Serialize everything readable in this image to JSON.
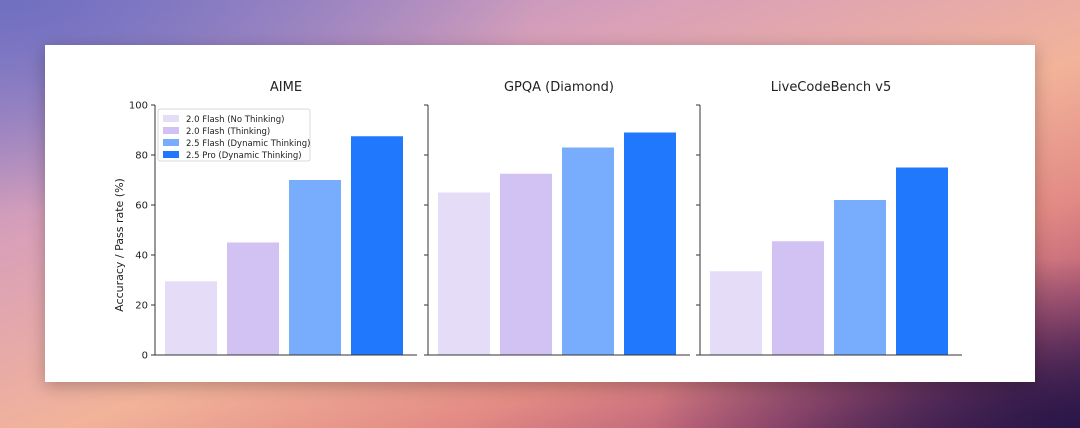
{
  "chart_data": {
    "type": "bar",
    "ylabel": "Accuracy / Pass rate (%)",
    "ylim": [
      0,
      100
    ],
    "yticks": [
      0,
      20,
      40,
      60,
      80,
      100
    ],
    "legend": {
      "placement": "top-left of first panel",
      "entries": [
        {
          "name": "2.0 Flash (No Thinking)",
          "color": "#e5dcf7"
        },
        {
          "name": "2.0 Flash (Thinking)",
          "color": "#d2c2f3"
        },
        {
          "name": "2.5 Flash (Dynamic Thinking)",
          "color": "#78adfe"
        },
        {
          "name": "2.5 Pro (Dynamic Thinking)",
          "color": "#2078fd"
        }
      ]
    },
    "panels": [
      {
        "title": "AIME",
        "values": [
          29.5,
          45,
          70,
          87.5
        ]
      },
      {
        "title": "GPQA (Diamond)",
        "values": [
          65,
          72.5,
          83,
          89
        ]
      },
      {
        "title": "LiveCodeBench v5",
        "values": [
          33.5,
          45.5,
          62,
          75
        ]
      }
    ]
  }
}
